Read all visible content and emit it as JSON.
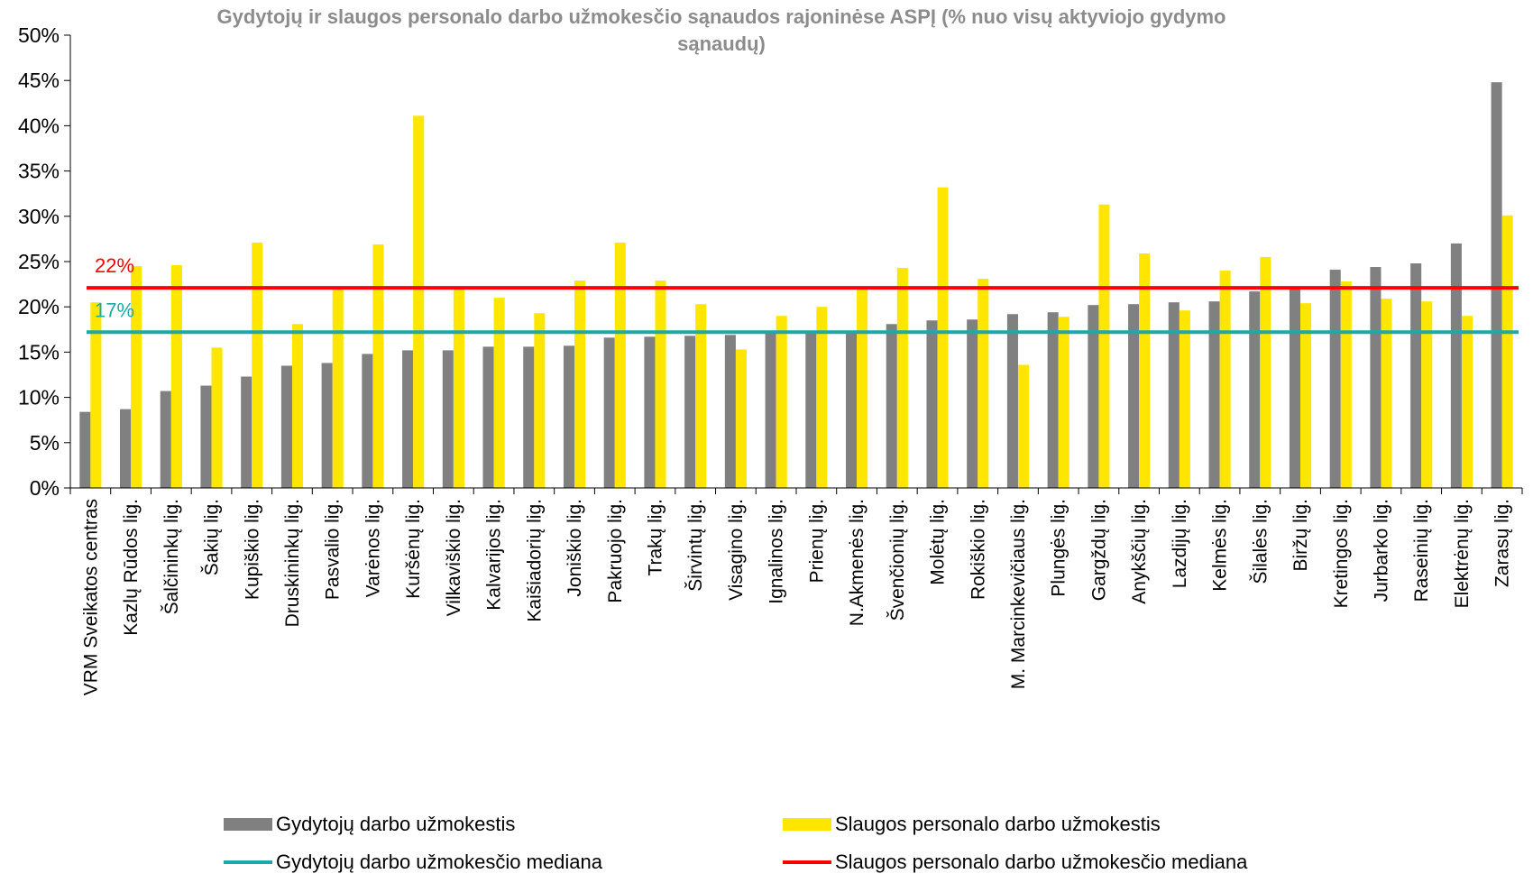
{
  "chart_data": {
    "type": "bar",
    "title": "Gydytojų ir slaugos personalo darbo užmokesčio sąnaudos rajoninėse ASPĮ (% nuo visų aktyviojo gydymo sąnaudų)",
    "categories": [
      "VRM Sveikatos centras",
      "Kazlų Rūdos lig.",
      "Šalčininkų lig.",
      "Šakių lig.",
      "Kupiškio lig.",
      "Druskininkų lig.",
      "Pasvalio lig.",
      "Varėnos lig.",
      "Kuršėnų lig.",
      "Vilkaviškio lig.",
      "Kalvarijos lig.",
      "Kaišiadorių lig.",
      "Joniškio lig.",
      "Pakruojo lig.",
      "Trakų lig.",
      "Širvintų lig.",
      "Visagino lig.",
      "Ignalinos lig.",
      "Prienų lig.",
      "N.Akmenės lig.",
      "Švenčionių lig.",
      "Molėtų lig.",
      "Rokiškio lig.",
      "M. Marcinkevičiaus lig.",
      "Plungės lig.",
      "Gargždų lig.",
      "Anykščių lig.",
      "Lazdijų lig.",
      "Kelmės lig.",
      "Šilalės lig.",
      "Biržų lig.",
      "Kretingos lig.",
      "Jurbarko lig.",
      "Raseinių lig.",
      "Elektrėnų lig.",
      "Zarasų lig."
    ],
    "series": [
      {
        "name": "Gydytojų darbo užmokestis",
        "color": "#808080",
        "values": [
          8.4,
          8.7,
          10.7,
          11.3,
          12.3,
          13.5,
          13.8,
          14.8,
          15.2,
          15.2,
          15.6,
          15.6,
          15.7,
          16.6,
          16.7,
          16.8,
          16.9,
          17.1,
          17.2,
          17.3,
          18.1,
          18.5,
          18.6,
          19.2,
          19.4,
          20.2,
          20.3,
          20.5,
          20.6,
          21.7,
          22.0,
          24.1,
          24.4,
          24.8,
          27.0,
          44.8
        ]
      },
      {
        "name": "Slaugos personalo darbo užmokestis",
        "color": "#FFE600",
        "values": [
          20.5,
          24.5,
          24.6,
          15.5,
          27.1,
          18.1,
          22.2,
          26.9,
          41.1,
          22.1,
          21.0,
          19.3,
          22.9,
          27.1,
          22.9,
          20.3,
          15.3,
          19.0,
          20.0,
          22.1,
          24.3,
          33.2,
          23.1,
          13.6,
          18.9,
          31.3,
          25.9,
          19.6,
          24.0,
          25.5,
          20.4,
          22.8,
          20.9,
          20.6,
          19.0,
          30.1
        ]
      }
    ],
    "medians": [
      {
        "name": "Gydytojų darbo užmokesčio mediana",
        "value": 17.2,
        "label": "17%",
        "color": "#1AAAAA"
      },
      {
        "name": "Slaugos personalo darbo užmokesčio mediana",
        "value": 22.1,
        "label": "22%",
        "color": "#FF0000"
      }
    ],
    "ylim": [
      0,
      50
    ],
    "yticks": [
      0,
      5,
      10,
      15,
      20,
      25,
      30,
      35,
      40,
      45,
      50
    ],
    "ytick_labels": [
      "0%",
      "5%",
      "10%",
      "15%",
      "20%",
      "25%",
      "30%",
      "35%",
      "40%",
      "45%",
      "50%"
    ],
    "grid": false,
    "legend_position": "bottom"
  }
}
